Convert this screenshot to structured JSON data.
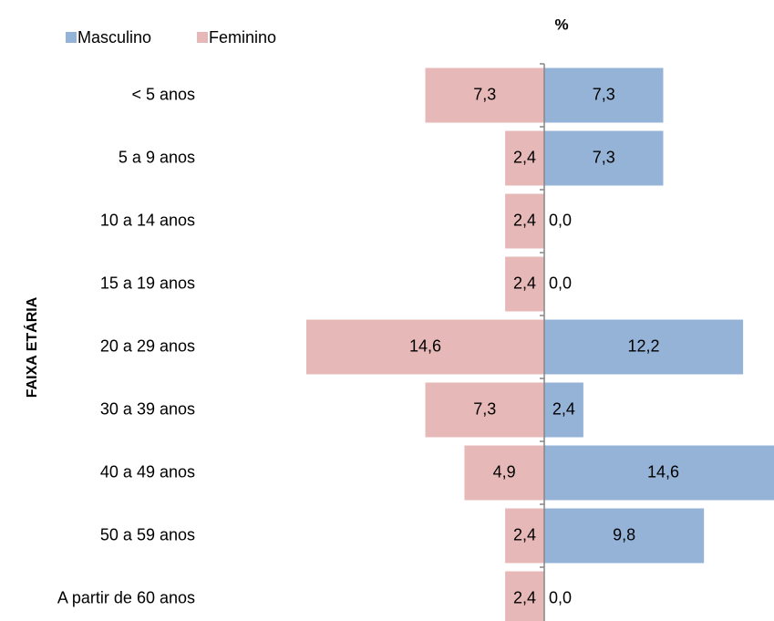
{
  "chart_data": {
    "type": "bar",
    "orientation": "horizontal",
    "layout": "pyramid",
    "title": "%",
    "y_label": "FAIXA ETÁRIA",
    "categories": [
      "< 5 anos",
      "5 a 9 anos",
      "10 a 14 anos",
      "15 a 19 anos",
      "20 a 29 anos",
      "30 a 39 anos",
      "40 a 49 anos",
      "50 a 59 anos",
      "A partir de 60 anos"
    ],
    "series": [
      {
        "name": "Masculino",
        "color": "#95b3d7",
        "values": [
          7.3,
          7.3,
          0.0,
          0.0,
          12.2,
          2.4,
          14.6,
          9.8,
          0.0
        ],
        "value_labels": [
          "7,3",
          "7,3",
          "0,0",
          "0,0",
          "12,2",
          "2,4",
          "14,6",
          "9,8",
          "0,0"
        ]
      },
      {
        "name": "Feminino",
        "color": "#e6b9b8",
        "values": [
          7.3,
          2.4,
          2.4,
          2.4,
          14.6,
          7.3,
          4.9,
          2.4,
          2.4
        ],
        "value_labels": [
          "7,3",
          "2,4",
          "2,4",
          "2,4",
          "14,6",
          "7,3",
          "4,9",
          "2,4",
          "2,4"
        ]
      }
    ],
    "legend": "top-left"
  }
}
